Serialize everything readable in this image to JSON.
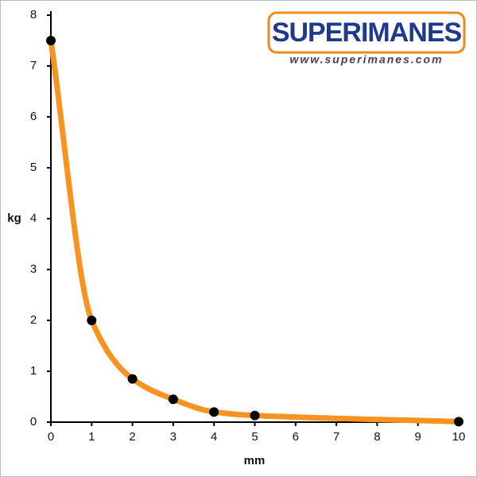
{
  "chart_data": {
    "type": "line",
    "logo": {
      "name": "SUPERIMANES",
      "url": "www.superimanes.com"
    },
    "xlabel": "mm",
    "ylabel": "kg",
    "x": [
      0,
      1,
      2,
      3,
      4,
      5,
      10
    ],
    "values": [
      7.5,
      2.0,
      0.85,
      0.45,
      0.2,
      0.13,
      0.01
    ],
    "color": "#f7931e",
    "marker_color": "#000000",
    "xlim": [
      0,
      10
    ],
    "ylim": [
      0,
      8
    ],
    "xticks": [
      0,
      1,
      2,
      3,
      4,
      5,
      6,
      7,
      8,
      9,
      10
    ],
    "yticks": [
      0,
      1,
      2,
      3,
      4,
      5,
      6,
      7,
      8
    ],
    "grid": false
  }
}
